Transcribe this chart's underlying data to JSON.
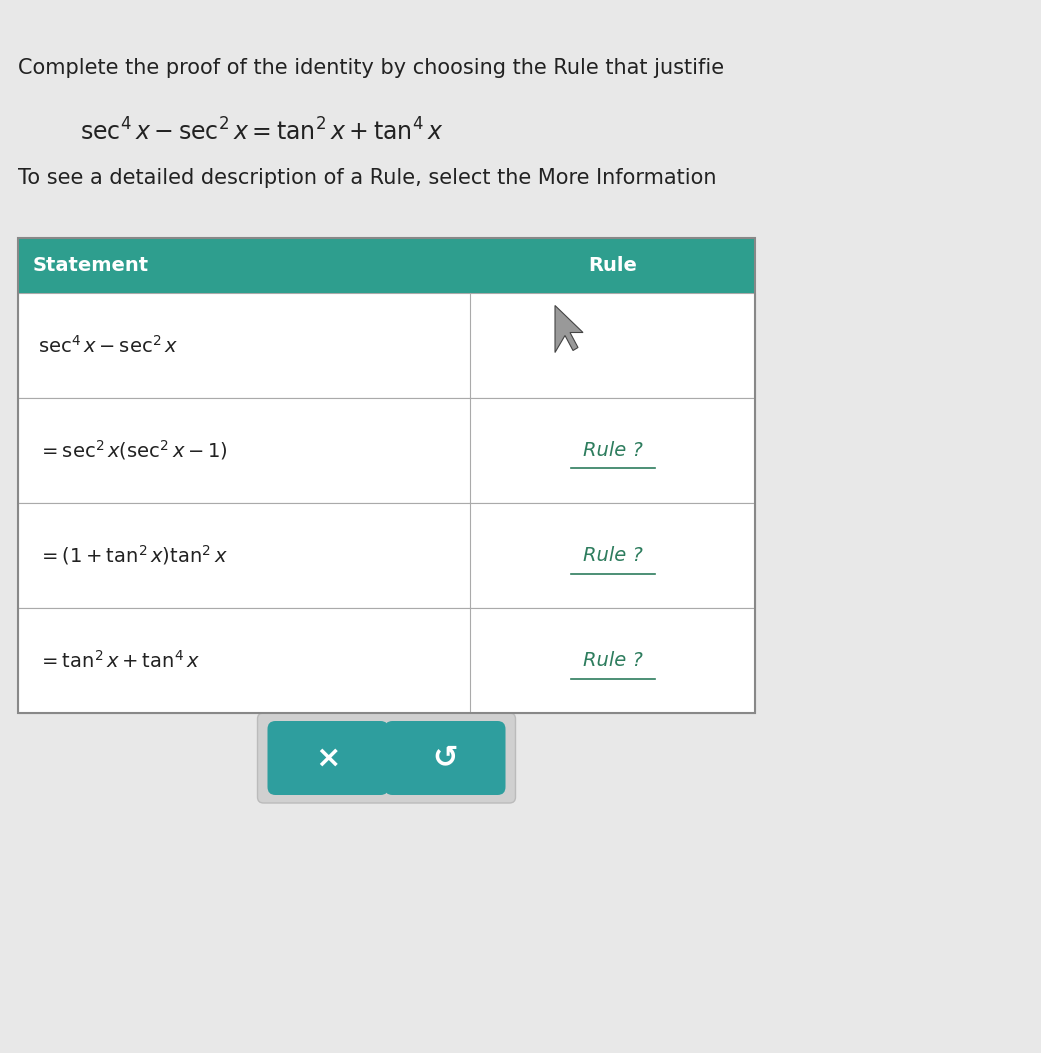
{
  "bg_color": "#e8e8e8",
  "title_text": "Complete the proof of the identity by choosing the Rule that justifie",
  "identity_latex": "$\\sec^4 x - \\sec^2 x = \\tan^2 x + \\tan^4 x$",
  "subtitle_text": "To see a detailed description of a Rule, select the More Information",
  "header_bg": "#2e9e8e",
  "header_statement": "Statement",
  "header_rule": "Rule",
  "row_bg": "#ffffff",
  "statements": [
    "$\\sec^4 x - \\sec^2 x$",
    "$= \\sec^2 x\\left(\\sec^2 x - 1\\right)$",
    "$= \\left(1 + \\tan^2 x\\right)\\tan^2 x$",
    "$= \\tan^2 x + \\tan^4 x$"
  ],
  "rules": [
    "",
    "Rule ?",
    "Rule ?",
    "Rule ?"
  ],
  "rule_color": "#2e7d5e",
  "button_bg": "#2e9e9e",
  "button_x_label": "×",
  "button_undo_label": "↺",
  "title_fontsize": 15,
  "statement_fontsize": 14,
  "rule_fontsize": 13,
  "header_fontsize": 14
}
